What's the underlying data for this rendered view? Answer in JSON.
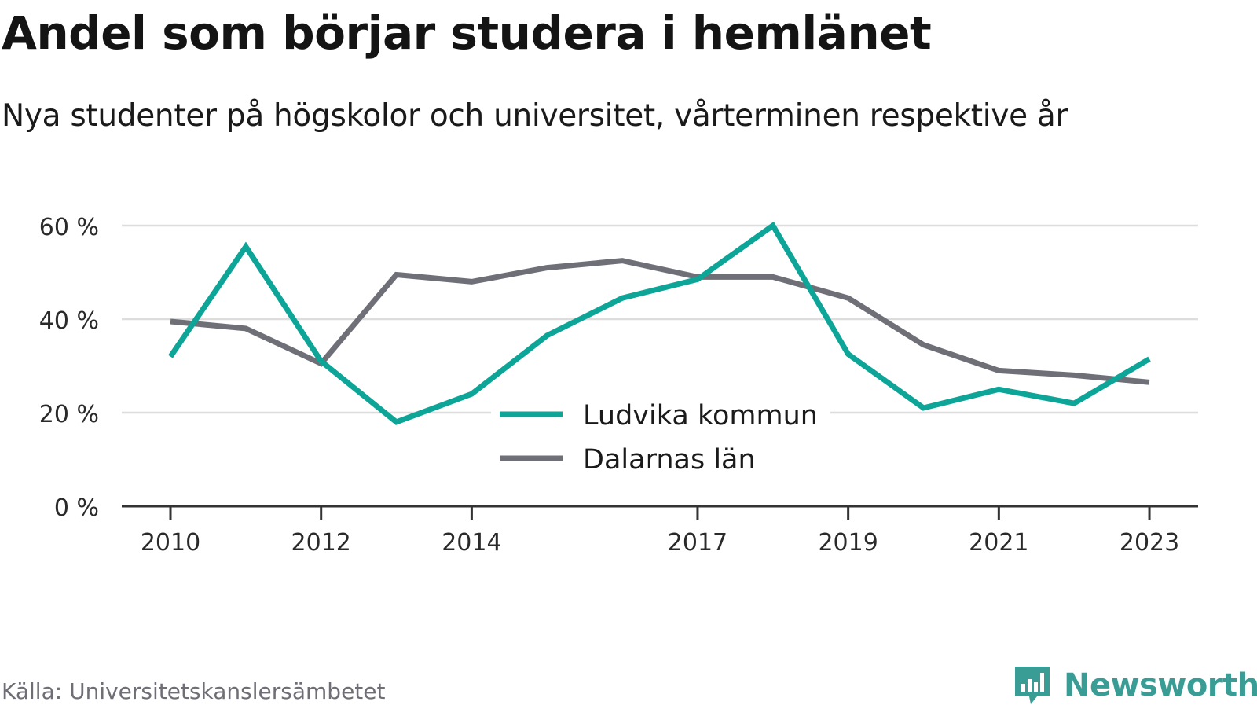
{
  "header": {
    "title": "Andel som börjar studera i hemlänet",
    "subtitle": "Nya studenter på högskolor och universitet, vårterminen respektive år"
  },
  "footer": {
    "source": "Källa: Universitetskanslersämbetet",
    "brand": "Newsworthy",
    "brand_icon": "bar-chart-speech-bubble-icon"
  },
  "colors": {
    "ludvika": "#0ea599",
    "dalarna": "#6f6f78",
    "grid": "#dddddd",
    "axis": "#333333",
    "brand": "#3a9d95"
  },
  "chart_data": {
    "type": "line",
    "title": "Andel som börjar studera i hemlänet",
    "subtitle": "Nya studenter på högskolor och universitet, vårterminen respektive år",
    "x": [
      2010,
      2011,
      2012,
      2013,
      2014,
      2015,
      2016,
      2017,
      2018,
      2019,
      2020,
      2021,
      2022,
      2023
    ],
    "x_tick_labels": [
      "2010",
      "2012",
      "2014",
      "2017",
      "2019",
      "2021",
      "2023"
    ],
    "x_tick_values": [
      2010,
      2012,
      2014,
      2017,
      2019,
      2021,
      2023
    ],
    "y_ticks": [
      0,
      20,
      40,
      60
    ],
    "y_tick_labels": [
      "0 %",
      "20 %",
      "40 %",
      "60 %"
    ],
    "ylim": [
      0,
      60
    ],
    "grid": true,
    "legend_position": "center",
    "series": [
      {
        "name": "Ludvika kommun",
        "values": [
          32,
          55.5,
          31,
          18,
          24,
          36.5,
          44.5,
          48.5,
          60,
          32.5,
          21,
          25,
          22,
          31.5
        ]
      },
      {
        "name": "Dalarnas län",
        "values": [
          39.5,
          38,
          30.5,
          49.5,
          48,
          51,
          52.5,
          49,
          49,
          44.5,
          34.5,
          29,
          28,
          26.5
        ]
      }
    ]
  }
}
